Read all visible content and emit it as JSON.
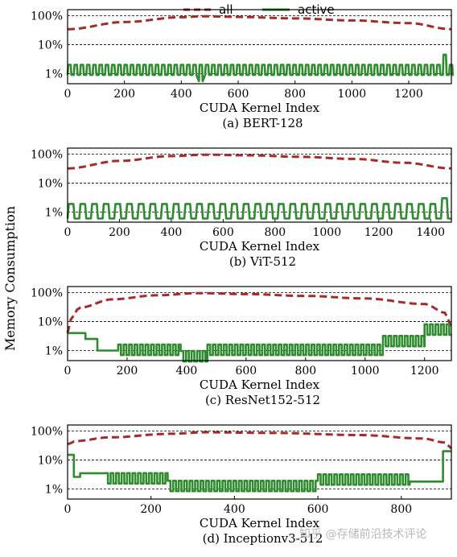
{
  "figure": {
    "ylabel": "Memory Consumption",
    "legend": [
      {
        "name": "all",
        "color": "#a52a2a",
        "style": "dashed"
      },
      {
        "name": "active",
        "color": "#2e8b2e",
        "style": "solid"
      }
    ],
    "watermark": "知乎 @存储前沿技术评论"
  },
  "chart_data": [
    {
      "type": "line",
      "caption": "(a) BERT-128",
      "xlabel": "CUDA Kernel Index",
      "xlim": [
        0,
        1350
      ],
      "xticks": [
        "0",
        "200",
        "400",
        "600",
        "800",
        "1000",
        "1200"
      ],
      "ylim_percent": [
        0.45,
        160
      ],
      "yscale": "log",
      "yticks": [
        "100%",
        "10%",
        "1%"
      ],
      "grid": "horizontal at 1%, 10%, 100%",
      "series": [
        {
          "name": "all",
          "pattern": "arch",
          "points": [
            [
              0,
              34
            ],
            [
              200,
              60
            ],
            [
              400,
              88
            ],
            [
              480,
              95
            ],
            [
              600,
              90
            ],
            [
              800,
              80
            ],
            [
              1000,
              68
            ],
            [
              1200,
              55
            ],
            [
              1350,
              34
            ]
          ]
        },
        {
          "name": "active",
          "pattern": "periodic",
          "base": 0.9,
          "peak": 2.0,
          "period": 22,
          "range": [
            0,
            1350
          ],
          "events": [
            [
              462,
              0.55
            ],
            [
              1320,
              4.5
            ]
          ]
        }
      ]
    },
    {
      "type": "line",
      "caption": "(b) ViT-512",
      "xlabel": "CUDA Kernel Index",
      "xlim": [
        0,
        1480
      ],
      "xticks": [
        "0",
        "200",
        "400",
        "600",
        "800",
        "1000",
        "1200",
        "1400"
      ],
      "ylim_percent": [
        0.45,
        160
      ],
      "yscale": "log",
      "yticks": [
        "100%",
        "10%",
        "1%"
      ],
      "grid": "horizontal at 1%, 10%, 100%",
      "series": [
        {
          "name": "all",
          "pattern": "arch",
          "points": [
            [
              0,
              32
            ],
            [
              200,
              58
            ],
            [
              400,
              85
            ],
            [
              530,
              95
            ],
            [
              700,
              90
            ],
            [
              900,
              80
            ],
            [
              1100,
              68
            ],
            [
              1300,
              50
            ],
            [
              1480,
              32
            ]
          ]
        },
        {
          "name": "active",
          "pattern": "periodic",
          "base": 0.6,
          "peak": 1.9,
          "period": 45,
          "range": [
            0,
            1480
          ],
          "events": [
            [
              1470,
              3.0
            ]
          ]
        }
      ]
    },
    {
      "type": "line",
      "caption": "(c) ResNet152-512",
      "xlabel": "CUDA Kernel Index",
      "xlim": [
        0,
        1290
      ],
      "xticks": [
        "0",
        "200",
        "400",
        "600",
        "800",
        "1000",
        "1200"
      ],
      "ylim_percent": [
        0.45,
        160
      ],
      "yscale": "log",
      "yticks": [
        "100%",
        "10%",
        "1%"
      ],
      "grid": "horizontal at 1%, 10%, 100%",
      "series": [
        {
          "name": "all",
          "pattern": "arch",
          "points": [
            [
              0,
              4
            ],
            [
              15,
              15
            ],
            [
              40,
              30
            ],
            [
              150,
              58
            ],
            [
              300,
              80
            ],
            [
              440,
              95
            ],
            [
              600,
              88
            ],
            [
              800,
              76
            ],
            [
              1000,
              62
            ],
            [
              1200,
              40
            ],
            [
              1270,
              20
            ],
            [
              1290,
              6
            ]
          ]
        },
        {
          "name": "active",
          "pattern": "segments",
          "segments": [
            [
              0,
              60,
              4.0
            ],
            [
              60,
              100,
              2.5
            ],
            [
              100,
              170,
              1.0
            ],
            [
              170,
              380,
              1.0
            ],
            [
              380,
              470,
              0.6
            ],
            [
              470,
              1060,
              1.0
            ],
            [
              1060,
              1200,
              2.0
            ],
            [
              1200,
              1290,
              5.0
            ]
          ]
        }
      ]
    },
    {
      "type": "line",
      "caption": "(d) Inceptionv3-512",
      "xlabel": "CUDA Kernel Index",
      "xlim": [
        0,
        920
      ],
      "xticks": [
        "0",
        "200",
        "400",
        "600",
        "800"
      ],
      "ylim_percent": [
        0.45,
        160
      ],
      "yscale": "log",
      "yticks": [
        "100%",
        "10%",
        "1%"
      ],
      "grid": "horizontal at 1%, 10%, 100%",
      "series": [
        {
          "name": "all",
          "pattern": "arch",
          "points": [
            [
              0,
              35
            ],
            [
              20,
              45
            ],
            [
              100,
              60
            ],
            [
              250,
              80
            ],
            [
              330,
              90
            ],
            [
              500,
              85
            ],
            [
              700,
              72
            ],
            [
              850,
              55
            ],
            [
              905,
              40
            ],
            [
              920,
              25
            ]
          ]
        },
        {
          "name": "active",
          "pattern": "segments",
          "segments": [
            [
              0,
              15,
              15
            ],
            [
              15,
              30,
              2.6
            ],
            [
              30,
              90,
              3.5
            ],
            [
              90,
              240,
              2.2
            ],
            [
              240,
              450,
              1.2
            ],
            [
              450,
              600,
              1.2
            ],
            [
              600,
              820,
              2.0
            ],
            [
              820,
              900,
              1.8
            ],
            [
              900,
              920,
              20
            ]
          ]
        }
      ]
    }
  ]
}
